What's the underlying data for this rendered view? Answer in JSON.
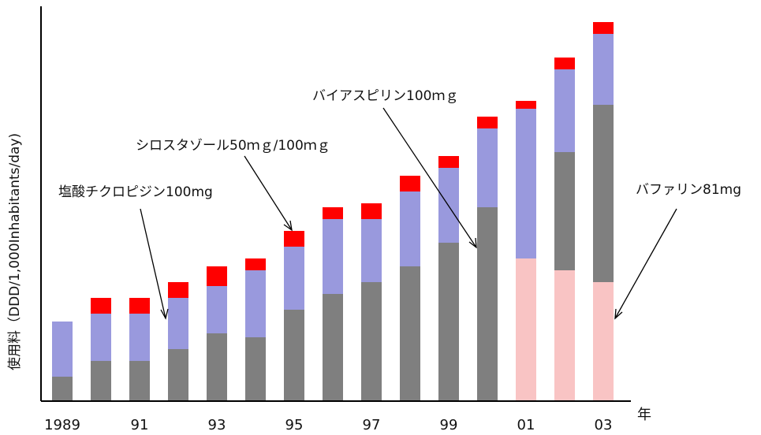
{
  "chart_data": {
    "type": "bar",
    "stacked": true,
    "title": "",
    "ylabel": "使用料（DDD/1,000Inhabitants/day)",
    "xlabel": "年",
    "categories": [
      "1989",
      "1990",
      "1991",
      "1992",
      "1993",
      "1994",
      "1995",
      "1996",
      "1997",
      "1998",
      "1999",
      "2000",
      "2001",
      "2002",
      "2003"
    ],
    "tick_labels": [
      "1989",
      "",
      "91",
      "",
      "93",
      "",
      "95",
      "",
      "97",
      "",
      "99",
      "",
      "01",
      "",
      "03"
    ],
    "ylim": [
      0,
      100
    ],
    "grid": false,
    "series": [
      {
        "key": "bufferin",
        "color": "#f9c4c4",
        "values": [
          0,
          0,
          0,
          0,
          0,
          0,
          0,
          0,
          0,
          0,
          0,
          0,
          36,
          33,
          30
        ]
      },
      {
        "key": "bayaspirin",
        "color": "#7f7f7f",
        "values": [
          6,
          10,
          10,
          13,
          17,
          16,
          23,
          27,
          30,
          34,
          40,
          49,
          0,
          30,
          45
        ]
      },
      {
        "key": "ticlopidine",
        "color": "#9999dd",
        "values": [
          14,
          12,
          12,
          13,
          12,
          17,
          16,
          19,
          16,
          19,
          19,
          20,
          38,
          21,
          18
        ]
      },
      {
        "key": "cilostazol",
        "color": "#ff0000",
        "values": [
          0,
          4,
          4,
          4,
          5,
          3,
          4,
          3,
          4,
          4,
          3,
          3,
          2,
          3,
          3
        ]
      }
    ],
    "annotations": [
      {
        "text": "塩酸チクロピジン100mg"
      },
      {
        "text": "シロスタゾール50ｍｇ/100ｍｇ"
      },
      {
        "text": "バイアスピリン100ｍｇ"
      },
      {
        "text": "バファリン81mg"
      }
    ]
  }
}
